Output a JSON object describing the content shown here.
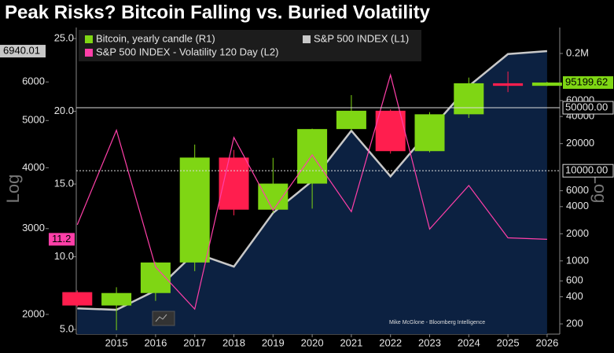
{
  "chart_data": {
    "type": "candlestick",
    "title": "Peak Risks? Bitcoin Falling vs. Buried Volatility",
    "categories": [
      null,
      "2015",
      "2016",
      "2017",
      "2018",
      "2019",
      "2020",
      "2021",
      "2022",
      "2023",
      "2024",
      "2025",
      "2026"
    ],
    "series": [
      {
        "name": "Bitcoin, yearly candle (R1)",
        "type": "candlestick",
        "axis": "y2",
        "color": "#7fd614",
        "down_color": "#ff1e4e",
        "open": [
          450,
          320,
          440,
          960,
          14000,
          3700,
          7200,
          29000,
          46300,
          16500,
          42300,
          93400,
          87500
        ],
        "high": [
          470,
          510,
          980,
          19500,
          17000,
          13900,
          29300,
          69000,
          48000,
          44700,
          108000,
          126000,
          97000
        ],
        "low": [
          310,
          170,
          360,
          770,
          3200,
          3400,
          3800,
          28000,
          15500,
          16000,
          38500,
          74500,
          87000
        ],
        "close": [
          320,
          440,
          960,
          14000,
          3700,
          7200,
          29000,
          46300,
          16500,
          42300,
          93400,
          87500,
          95199.62
        ]
      },
      {
        "name": "S&P 500 INDEX  (L1)",
        "type": "area",
        "axis": "y",
        "color": "#c8c8c8",
        "fill": "#0c2141",
        "values": [
          2058,
          2044,
          2239,
          2674,
          2507,
          3231,
          3756,
          4766,
          3840,
          4770,
          5882,
          6846,
          6940.01
        ]
      },
      {
        "name": "S&P 500 INDEX - Volatility 120 Day (L2)",
        "type": "line",
        "axis": "y3",
        "color": "#ff3fa8",
        "values": [
          12.2,
          18.7,
          9.3,
          6.4,
          18.2,
          13.2,
          17.0,
          13.1,
          22.5,
          11.9,
          14.9,
          11.3,
          11.2
        ]
      }
    ],
    "ylog": true,
    "ylim": [
      1822,
      7760
    ],
    "yticks": [
      2000,
      3000,
      4000,
      5000,
      6000
    ],
    "y_label": "Log",
    "y3lim": [
      4.68,
      25.76
    ],
    "y3ticks": [
      {
        "value": 5,
        "label": "5.0"
      },
      {
        "value": 10,
        "label": "10.0"
      },
      {
        "value": 15,
        "label": "15.0"
      },
      {
        "value": 20,
        "label": "20.0"
      },
      {
        "value": 25,
        "label": "25.0"
      }
    ],
    "y2log": true,
    "y2lim": [
      154,
      388000
    ],
    "y2ticks": [
      200,
      400,
      600,
      1000,
      2000,
      4000,
      6000,
      20000,
      40000,
      60000,
      {
        "value": 200000,
        "label": "0.2M"
      }
    ],
    "y2_label": "Log",
    "reference_lines": [
      {
        "value": 50000,
        "label": "50000.00",
        "style": "solid"
      },
      {
        "value": 10000,
        "label": "10000.00",
        "style": "dotted"
      }
    ],
    "annotation": "Mike McGlone - Bloomberg Intelligence"
  }
}
